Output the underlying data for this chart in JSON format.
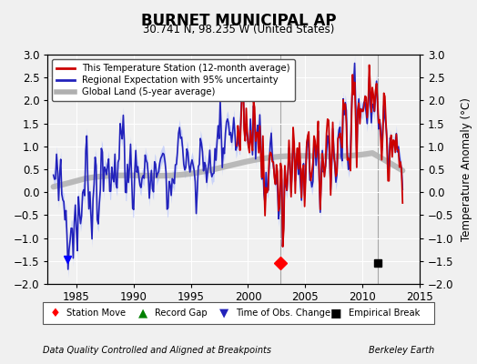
{
  "title": "BURNET MUNICIPAL AP",
  "subtitle": "30.741 N, 98.235 W (United States)",
  "ylabel": "Temperature Anomaly (°C)",
  "footer_left": "Data Quality Controlled and Aligned at Breakpoints",
  "footer_right": "Berkeley Earth",
  "xlim": [
    1982.5,
    2014.5
  ],
  "ylim": [
    -2,
    3
  ],
  "yticks": [
    -2,
    -1.5,
    -1,
    -0.5,
    0,
    0.5,
    1,
    1.5,
    2,
    2.5,
    3
  ],
  "xticks": [
    1985,
    1990,
    1995,
    2000,
    2005,
    2010,
    2015
  ],
  "bg_color": "#f0f0f0",
  "plot_bg_color": "#f0f0f0",
  "grid_color": "#cccccc",
  "station_move_year": 2002.8,
  "empirical_break_year": 2011.3,
  "time_obs_year": 1984.2,
  "vline_years": [
    2002.8,
    2011.3
  ],
  "station_start_year": 1999.0,
  "regional_start_year": 1983.0,
  "end_year": 2013.5,
  "n_regional": 366,
  "n_station": 174,
  "red_color": "#cc0000",
  "blue_color": "#2222bb",
  "band_color": "#aabbff",
  "gray_color": "#b0b0b0",
  "marker_y": -1.55
}
